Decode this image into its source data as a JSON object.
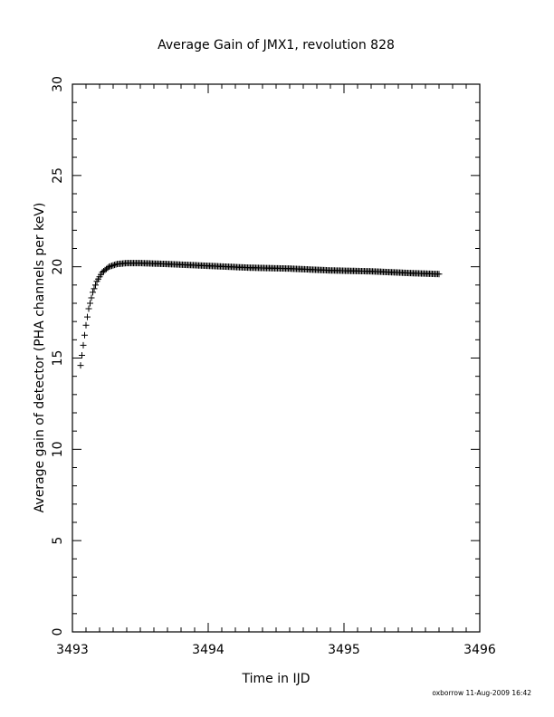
{
  "chart_data": {
    "type": "scatter",
    "title": "Average Gain of JMX1, revolution 828",
    "xlabel": "Time in IJD",
    "ylabel": "Average gain of detector (PHA channels per keV)",
    "xlim": [
      3493,
      3496
    ],
    "ylim": [
      0,
      30
    ],
    "x_ticks": [
      "3493",
      "3494",
      "3495",
      "3496"
    ],
    "y_ticks": [
      "0",
      "5",
      "10",
      "15",
      "20",
      "25",
      "30"
    ],
    "marker": "plus",
    "grid": false,
    "series": [
      {
        "x": [
          3493.06,
          3493.08,
          3493.1,
          3493.12,
          3493.15,
          3493.18,
          3493.22,
          3493.27,
          3493.33,
          3493.4,
          3493.5,
          3493.7,
          3494.0,
          3494.3,
          3494.6,
          3494.9,
          3495.2,
          3495.5,
          3495.7
        ],
        "y": [
          14.6,
          15.7,
          16.8,
          17.7,
          18.6,
          19.2,
          19.7,
          20.0,
          20.15,
          20.2,
          20.2,
          20.15,
          20.05,
          19.95,
          19.9,
          19.8,
          19.75,
          19.65,
          19.6
        ]
      }
    ]
  },
  "footer": {
    "credit": "oxborrow 11-Aug-2009 16:42"
  }
}
